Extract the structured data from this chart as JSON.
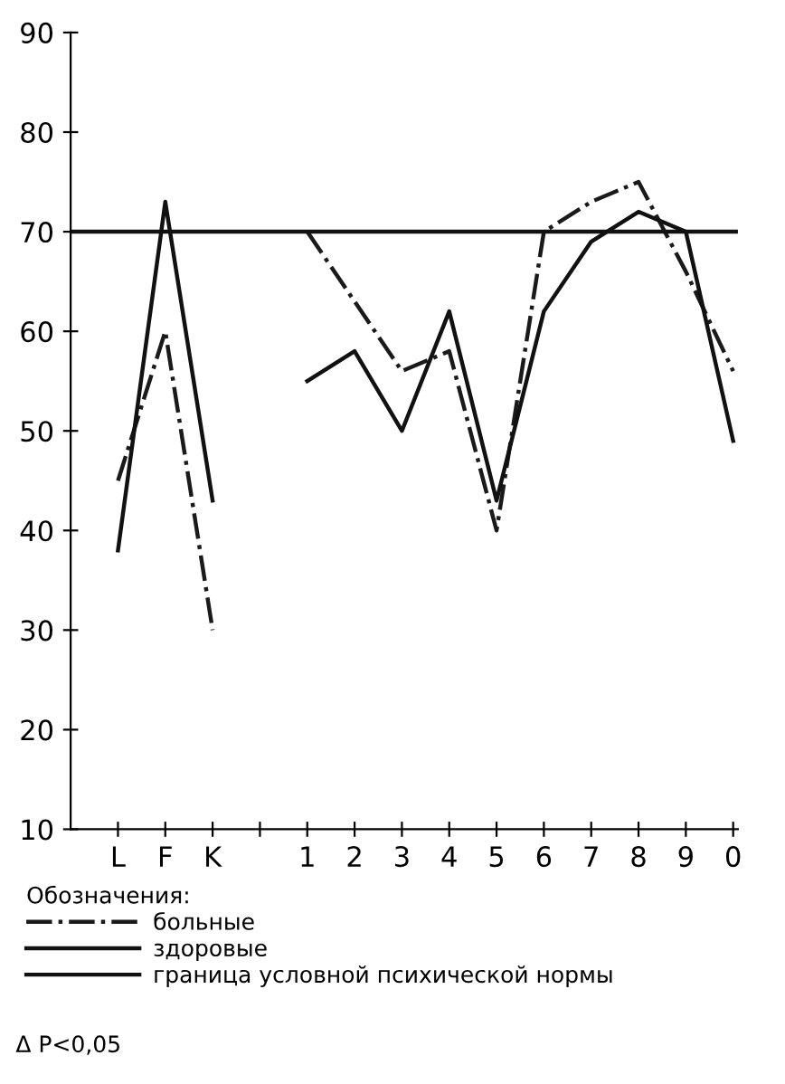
{
  "chart_data": {
    "type": "line",
    "categories": [
      "L",
      "F",
      "K",
      null,
      "1",
      "2",
      "3",
      "4",
      "5",
      "6",
      "7",
      "8",
      "9",
      "0"
    ],
    "series": [
      {
        "name": "больные",
        "color": "#1a1a1a",
        "line_style": "dashdot",
        "values": [
          45,
          60,
          30,
          null,
          70,
          63,
          56,
          58,
          40,
          70,
          73,
          75,
          66,
          56
        ]
      },
      {
        "name": "здоровые",
        "color": "#111111",
        "line_style": "solid",
        "values": [
          38,
          73,
          43,
          null,
          55,
          58,
          50,
          62,
          43,
          62,
          69,
          72,
          70,
          49
        ]
      }
    ],
    "ref_lines": [
      {
        "axis": "y",
        "value": 70,
        "label": "граница условной психической нормы",
        "color": "#111111"
      }
    ],
    "ylim": [
      10,
      90
    ],
    "yticks": [
      10,
      20,
      30,
      40,
      50,
      60,
      70,
      80,
      90
    ],
    "grid": false,
    "marker": "none",
    "legend": "bottom",
    "legend_title": "Обозначения:",
    "annotations": [
      "Δ P<0,05"
    ]
  }
}
